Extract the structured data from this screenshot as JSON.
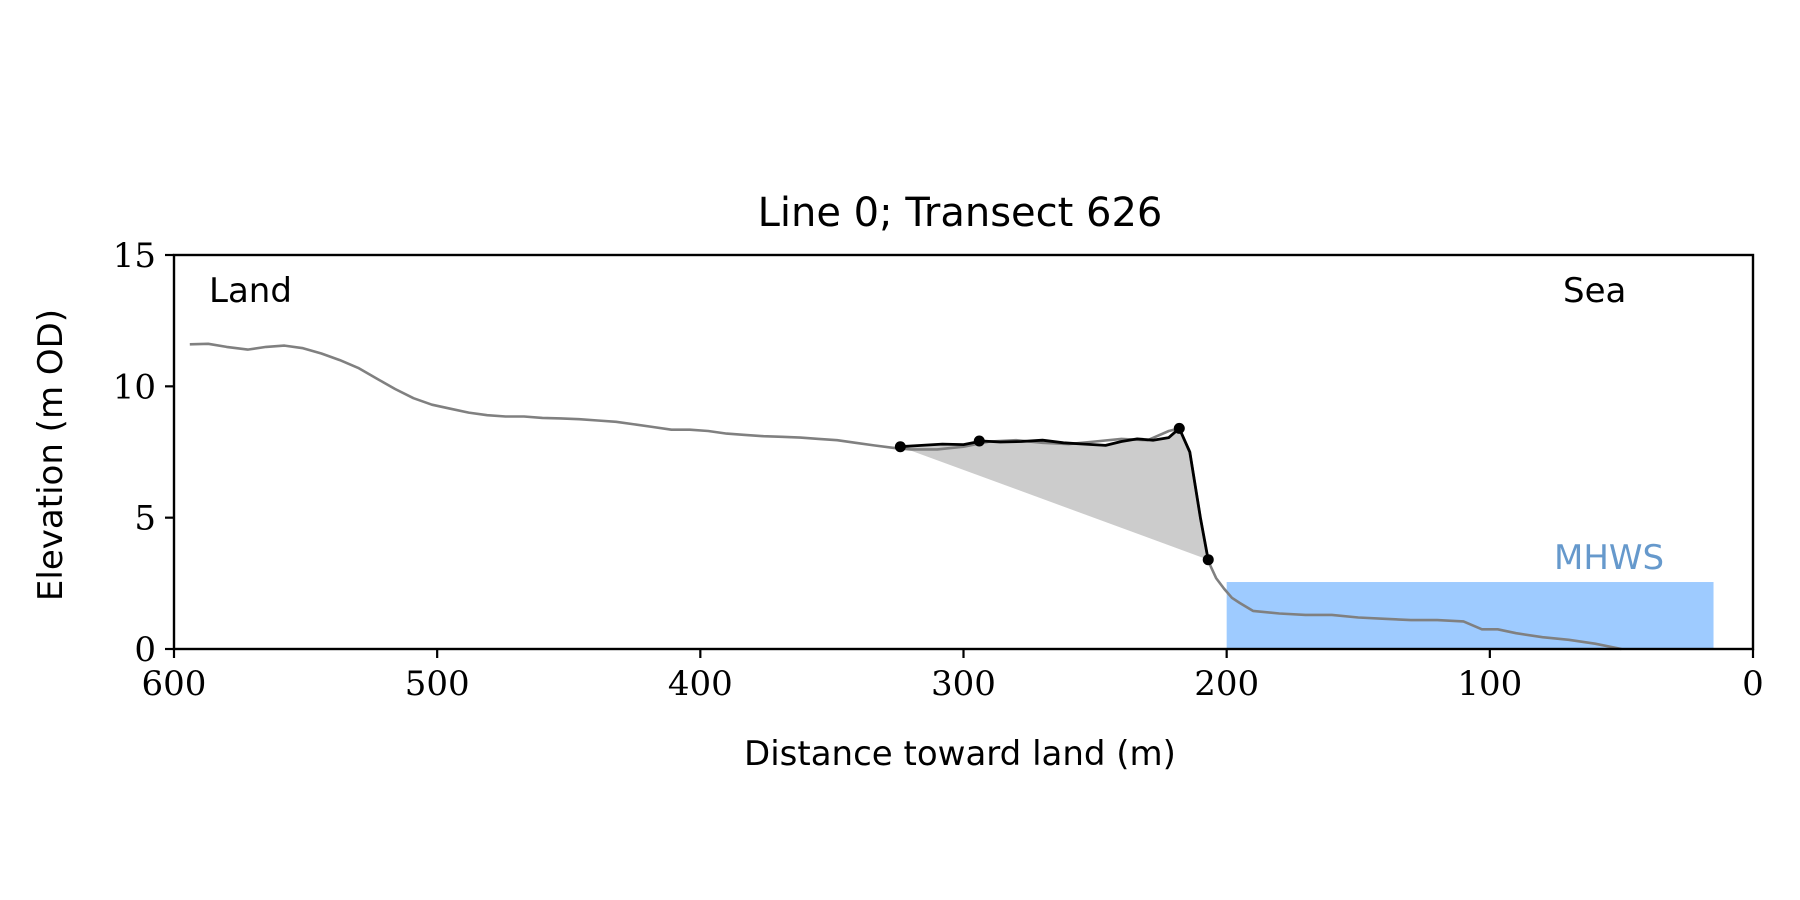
{
  "chart_data": {
    "type": "line",
    "title": "Line 0; Transect 626",
    "xlabel": "Distance toward land (m)",
    "ylabel": "Elevation (m OD)",
    "xlim": [
      600,
      0
    ],
    "ylim": [
      0,
      15
    ],
    "x_ticks": [
      600,
      500,
      400,
      300,
      200,
      100,
      0
    ],
    "y_ticks": [
      0,
      5,
      10,
      15
    ],
    "grid": false,
    "annotations": {
      "left": "Land",
      "right": "Sea",
      "water_label": "MHWS"
    },
    "colors": {
      "profile": "#808080",
      "dune": "#000000",
      "dune_fill": "#cccccc",
      "water": "#9ecbff",
      "water_label": "#6699cc"
    },
    "water_level": {
      "elevation": 2.55,
      "x_from": 200,
      "x_to": 15
    },
    "profile": {
      "x": [
        594,
        587,
        580,
        572,
        565,
        558,
        551,
        544,
        537,
        530,
        523,
        516,
        509,
        502,
        495,
        488,
        481,
        474,
        467,
        460,
        453,
        446,
        439,
        432,
        425,
        418,
        411,
        404,
        397,
        390,
        383,
        376,
        369,
        362,
        355,
        348,
        341,
        334,
        326,
        320,
        310,
        300,
        290,
        280,
        270,
        260,
        250,
        240,
        230,
        222,
        218,
        214,
        210,
        207,
        204,
        201,
        198,
        195,
        190,
        180,
        170,
        160,
        150,
        140,
        130,
        120,
        110,
        103,
        97,
        90,
        80,
        70,
        60,
        50
      ],
      "y": [
        11.6,
        11.62,
        11.5,
        11.4,
        11.5,
        11.55,
        11.45,
        11.25,
        11.0,
        10.7,
        10.3,
        9.9,
        9.55,
        9.3,
        9.15,
        9.0,
        8.9,
        8.85,
        8.85,
        8.8,
        8.78,
        8.75,
        8.7,
        8.65,
        8.55,
        8.45,
        8.35,
        8.35,
        8.3,
        8.2,
        8.15,
        8.1,
        8.08,
        8.05,
        8.0,
        7.95,
        7.85,
        7.75,
        7.65,
        7.6,
        7.6,
        7.7,
        7.9,
        7.95,
        7.85,
        7.8,
        7.9,
        8.0,
        7.95,
        8.3,
        8.4,
        7.5,
        5.0,
        3.35,
        2.7,
        2.3,
        1.95,
        1.75,
        1.45,
        1.35,
        1.3,
        1.3,
        1.2,
        1.15,
        1.1,
        1.1,
        1.05,
        0.75,
        0.75,
        0.6,
        0.45,
        0.35,
        0.2,
        0.0
      ]
    },
    "dune": {
      "x": [
        324,
        316,
        308,
        300,
        293,
        286,
        278,
        270,
        262,
        254,
        246,
        240,
        234,
        228,
        222,
        218,
        214,
        210,
        207
      ],
      "y": [
        7.7,
        7.75,
        7.8,
        7.78,
        7.92,
        7.88,
        7.9,
        7.95,
        7.85,
        7.8,
        7.75,
        7.9,
        8.0,
        7.95,
        8.05,
        8.4,
        7.5,
        5.0,
        3.4
      ]
    },
    "dune_toe_line": {
      "x": [
        324,
        207
      ],
      "y": [
        7.7,
        3.4
      ]
    },
    "markers": {
      "x": [
        324,
        294,
        218,
        207
      ],
      "y": [
        7.7,
        7.92,
        8.4,
        3.4
      ]
    }
  }
}
